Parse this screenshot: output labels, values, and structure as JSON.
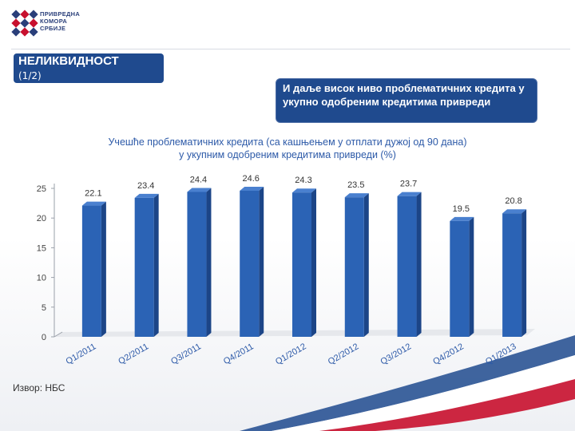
{
  "header": {
    "logo_lines": [
      "ПРИВРЕДНА",
      "КОМОРА",
      "СРБИЈЕ"
    ],
    "title": "НЕЛИКВИДНОСТ",
    "subtitle": "(1/2)"
  },
  "callout": {
    "text": "И даље висок ниво проблематичних кредита у укупно одобреним кредитима привреди"
  },
  "source": "Извор: НБС",
  "colors": {
    "bar": "#2b63b5",
    "bar_side": "#1c4587",
    "bar_top": "#4a80cf",
    "title_box": "#1f4a8e",
    "chart_title": "#2d5aa8"
  },
  "chart_data": {
    "type": "bar",
    "title_lines": [
      "Учешће проблематичних кредита (са кашњењем у отплати дужој од 90 дана)",
      "у укупним одобреним кредитима привреди (%)"
    ],
    "categories": [
      "Q1/2011",
      "Q2/2011",
      "Q3/2011",
      "Q4/2011",
      "Q1/2012",
      "Q2/2012",
      "Q3/2012",
      "Q4/2012",
      "Q1/2013"
    ],
    "values": [
      22.1,
      23.4,
      24.4,
      24.6,
      24.3,
      23.5,
      23.7,
      19.5,
      20.8
    ],
    "value_labels": [
      "22.1",
      "23.4",
      "24.4",
      "24.6",
      "24.3",
      "23.5",
      "23.7",
      "19.5",
      "20.8"
    ],
    "yticks": [
      "0",
      "5",
      "10",
      "15",
      "20",
      "25"
    ],
    "ylim": [
      0,
      25
    ],
    "grid": false,
    "legend": "none"
  }
}
